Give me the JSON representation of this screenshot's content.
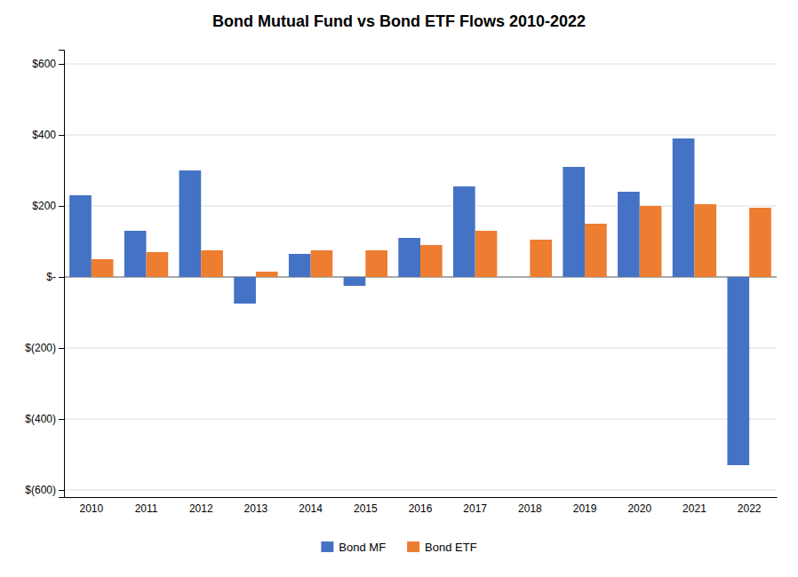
{
  "chart_data": {
    "type": "bar",
    "title": "Bond Mutual Fund vs Bond ETF Flows 2010-2022",
    "categories": [
      "2010",
      "2011",
      "2012",
      "2013",
      "2014",
      "2015",
      "2016",
      "2017",
      "2018",
      "2019",
      "2020",
      "2021",
      "2022"
    ],
    "series": [
      {
        "name": "Bond MF",
        "color": "#4472C4",
        "values": [
          230,
          130,
          300,
          -75,
          65,
          -25,
          110,
          255,
          0,
          310,
          240,
          390,
          -530
        ]
      },
      {
        "name": "Bond ETF",
        "color": "#ED7D31",
        "values": [
          50,
          70,
          75,
          15,
          75,
          75,
          90,
          130,
          105,
          150,
          200,
          205,
          195
        ]
      }
    ],
    "ylim": [
      -620,
      640
    ],
    "yticks": [
      {
        "value": -600,
        "label": "$(600)"
      },
      {
        "value": -400,
        "label": "$(400)"
      },
      {
        "value": -200,
        "label": "$(200)"
      },
      {
        "value": 0,
        "label": "$-"
      },
      {
        "value": 200,
        "label": "$200"
      },
      {
        "value": 400,
        "label": "$400"
      },
      {
        "value": 600,
        "label": "$600"
      }
    ],
    "grid": true,
    "legend": "bottom"
  }
}
